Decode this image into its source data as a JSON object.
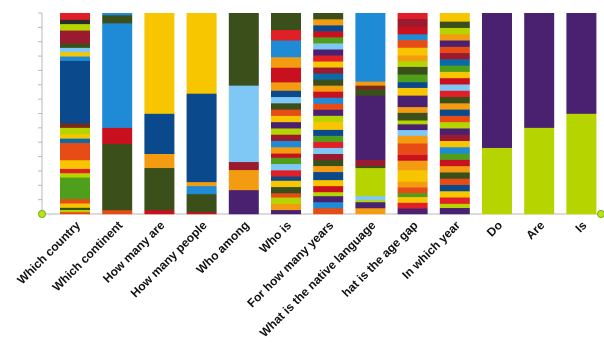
{
  "chart_data": {
    "type": "bar",
    "stacked": true,
    "normalized": true,
    "ylim": [
      0,
      1
    ],
    "grid": false,
    "legend": "none",
    "categories": [
      "Which country",
      "Which continent",
      "How many are",
      "How many people",
      "Who among",
      "Who is",
      "For how many years",
      "What is the native language",
      "hat is the age gap",
      "In which year",
      "Do",
      "Are",
      "Is"
    ],
    "stacks": [
      [
        [
          "#e74c16",
          0.01
        ],
        [
          "#b5d400",
          0.01
        ],
        [
          "#3a4f1a",
          0.01
        ],
        [
          "#f7c600",
          0.02
        ],
        [
          "#e74c16",
          0.02
        ],
        [
          "#4f9f1c",
          0.1
        ],
        [
          "#b5d400",
          0.02
        ],
        [
          "#e01f26",
          0.02
        ],
        [
          "#f7c600",
          0.04
        ],
        [
          "#e74c16",
          0.08
        ],
        [
          "#0b6aa8",
          0.02
        ],
        [
          "#f7c600",
          0.02
        ],
        [
          "#b5d400",
          0.03
        ],
        [
          "#7a2a1a",
          0.02
        ],
        [
          "#0a4a8c",
          0.29
        ],
        [
          "#1f8ad6",
          0.02
        ],
        [
          "#f7c600",
          0.02
        ],
        [
          "#7fc8f5",
          0.02
        ],
        [
          "#3a4f1a",
          0.02
        ],
        [
          "#9a1a30",
          0.06
        ],
        [
          "#b5d400",
          0.03
        ],
        [
          "#2b2b2b",
          0.02
        ],
        [
          "#e01f26",
          0.03
        ]
      ],
      [
        [
          "#e74c16",
          0.02
        ],
        [
          "#3a4f1a",
          0.33
        ],
        [
          "#c8101e",
          0.08
        ],
        [
          "#1f8ad6",
          0.52
        ],
        [
          "#3a4f1a",
          0.04
        ],
        [
          "#1f8ad6",
          0.01
        ]
      ],
      [
        [
          "#c8101e",
          0.02
        ],
        [
          "#3a4f1a",
          0.21
        ],
        [
          "#f39c12",
          0.07
        ],
        [
          "#0a4a8c",
          0.2
        ],
        [
          "#f7c600",
          0.5
        ]
      ],
      [
        [
          "#c8101e",
          0.01
        ],
        [
          "#3a4f1a",
          0.09
        ],
        [
          "#1f8ad6",
          0.04
        ],
        [
          "#f39c12",
          0.02
        ],
        [
          "#0a4a8c",
          0.44
        ],
        [
          "#f7c600",
          0.4
        ]
      ],
      [
        [
          "#4a2070",
          0.12
        ],
        [
          "#f39c12",
          0.1
        ],
        [
          "#9a1a30",
          0.04
        ],
        [
          "#7fc8f5",
          0.38
        ],
        [
          "#3a4f1a",
          0.36
        ]
      ],
      [
        [
          "#4a2070",
          0.02
        ],
        [
          "#f39c12",
          0.03
        ],
        [
          "#b5d400",
          0.03
        ],
        [
          "#e74c16",
          0.02
        ],
        [
          "#3a4f1a",
          0.03
        ],
        [
          "#f7c600",
          0.03
        ],
        [
          "#0a4a8c",
          0.02
        ],
        [
          "#e01f26",
          0.03
        ],
        [
          "#7fc8f5",
          0.03
        ],
        [
          "#4f9f1c",
          0.03
        ],
        [
          "#c8101e",
          0.02
        ],
        [
          "#f39c12",
          0.03
        ],
        [
          "#1f8ad6",
          0.03
        ],
        [
          "#9a1a30",
          0.03
        ],
        [
          "#b5d400",
          0.03
        ],
        [
          "#4a2070",
          0.03
        ],
        [
          "#f7c600",
          0.03
        ],
        [
          "#e74c16",
          0.03
        ],
        [
          "#3a4f1a",
          0.03
        ],
        [
          "#7fc8f5",
          0.03
        ],
        [
          "#0a4a8c",
          0.03
        ],
        [
          "#f39c12",
          0.04
        ],
        [
          "#c8101e",
          0.07
        ],
        [
          "#f39c12",
          0.05
        ],
        [
          "#1f8ad6",
          0.08
        ],
        [
          "#e01f26",
          0.05
        ],
        [
          "#3a4f1a",
          0.04
        ],
        [
          "#3a4f1a",
          0.04
        ]
      ],
      [
        [
          "#e74c16",
          0.03
        ],
        [
          "#1f8ad6",
          0.03
        ],
        [
          "#4a2070",
          0.03
        ],
        [
          "#b5d400",
          0.02
        ],
        [
          "#c8101e",
          0.03
        ],
        [
          "#f7c600",
          0.03
        ],
        [
          "#0a4a8c",
          0.04
        ],
        [
          "#f39c12",
          0.03
        ],
        [
          "#3a4f1a",
          0.03
        ],
        [
          "#9a1a30",
          0.03
        ],
        [
          "#7fc8f5",
          0.03
        ],
        [
          "#e01f26",
          0.03
        ],
        [
          "#4f9f1c",
          0.03
        ],
        [
          "#0a4a8c",
          0.03
        ],
        [
          "#f7c600",
          0.04
        ],
        [
          "#b5d400",
          0.03
        ],
        [
          "#4a2070",
          0.03
        ],
        [
          "#e74c16",
          0.03
        ],
        [
          "#1f8ad6",
          0.03
        ],
        [
          "#c8101e",
          0.03
        ],
        [
          "#f39c12",
          0.03
        ],
        [
          "#3a4f1a",
          0.03
        ],
        [
          "#0b6aa8",
          0.03
        ],
        [
          "#9a1a30",
          0.03
        ],
        [
          "#f7c600",
          0.03
        ],
        [
          "#e01f26",
          0.03
        ],
        [
          "#4a2070",
          0.03
        ],
        [
          "#7fc8f5",
          0.03
        ],
        [
          "#4f9f1c",
          0.03
        ],
        [
          "#c8101e",
          0.03
        ],
        [
          "#0a4a8c",
          0.03
        ],
        [
          "#f39c12",
          0.03
        ],
        [
          "#3a4f1a",
          0.03
        ]
      ],
      [
        [
          "#f39c12",
          0.03
        ],
        [
          "#4a2070",
          0.03
        ],
        [
          "#b5d400",
          0.01
        ],
        [
          "#7fc8f5",
          0.02
        ],
        [
          "#b5d400",
          0.14
        ],
        [
          "#3a4f1a",
          0.01
        ],
        [
          "#9a1a30",
          0.03
        ],
        [
          "#4a2070",
          0.32
        ],
        [
          "#3a4f1a",
          0.03
        ],
        [
          "#7a2a1a",
          0.02
        ],
        [
          "#f39c12",
          0.02
        ],
        [
          "#1f8ad6",
          0.34
        ]
      ],
      [
        [
          "#4a2070",
          0.03
        ],
        [
          "#e01f26",
          0.03
        ],
        [
          "#f7c600",
          0.03
        ],
        [
          "#4f9f1c",
          0.02
        ],
        [
          "#e74c16",
          0.03
        ],
        [
          "#f39c12",
          0.03
        ],
        [
          "#f7c600",
          0.06
        ],
        [
          "#f39c12",
          0.05
        ],
        [
          "#c8101e",
          0.03
        ],
        [
          "#e74c16",
          0.06
        ],
        [
          "#f39c12",
          0.04
        ],
        [
          "#7fc8f5",
          0.03
        ],
        [
          "#4a2070",
          0.03
        ],
        [
          "#b5d400",
          0.02
        ],
        [
          "#3a4f1a",
          0.04
        ],
        [
          "#f39c12",
          0.03
        ],
        [
          "#4a2070",
          0.06
        ],
        [
          "#f7c600",
          0.04
        ],
        [
          "#0a4a8c",
          0.03
        ],
        [
          "#4f9f1c",
          0.04
        ],
        [
          "#3a4f1a",
          0.04
        ],
        [
          "#b5d400",
          0.03
        ],
        [
          "#f39c12",
          0.03
        ],
        [
          "#f7c600",
          0.04
        ],
        [
          "#e74c16",
          0.04
        ],
        [
          "#1f8ad6",
          0.03
        ],
        [
          "#c8101e",
          0.04
        ],
        [
          "#9a1a30",
          0.04
        ],
        [
          "#e01f26",
          0.03
        ]
      ],
      [
        [
          "#4a2070",
          0.03
        ],
        [
          "#b5d400",
          0.02
        ],
        [
          "#e01f26",
          0.03
        ],
        [
          "#f7c600",
          0.03
        ],
        [
          "#0a4a8c",
          0.03
        ],
        [
          "#e74c16",
          0.03
        ],
        [
          "#3a4f1a",
          0.03
        ],
        [
          "#f39c12",
          0.03
        ],
        [
          "#c8101e",
          0.03
        ],
        [
          "#4f9f1c",
          0.03
        ],
        [
          "#1f8ad6",
          0.03
        ],
        [
          "#f7c600",
          0.03
        ],
        [
          "#9a1a30",
          0.03
        ],
        [
          "#4a2070",
          0.03
        ],
        [
          "#b5d400",
          0.03
        ],
        [
          "#e74c16",
          0.03
        ],
        [
          "#0a4a8c",
          0.03
        ],
        [
          "#f39c12",
          0.03
        ],
        [
          "#3a4f1a",
          0.03
        ],
        [
          "#e01f26",
          0.03
        ],
        [
          "#7fc8f5",
          0.03
        ],
        [
          "#c8101e",
          0.03
        ],
        [
          "#f7c600",
          0.03
        ],
        [
          "#4f9f1c",
          0.03
        ],
        [
          "#0b6aa8",
          0.03
        ],
        [
          "#9a1a30",
          0.03
        ],
        [
          "#e74c16",
          0.03
        ],
        [
          "#4a2070",
          0.03
        ],
        [
          "#f39c12",
          0.03
        ],
        [
          "#b5d400",
          0.03
        ],
        [
          "#3a4f1a",
          0.03
        ],
        [
          "#f7c600",
          0.04
        ]
      ],
      [
        [
          "#b5d400",
          0.33
        ],
        [
          "#4a2070",
          0.67
        ]
      ],
      [
        [
          "#b5d400",
          0.43
        ],
        [
          "#4a2070",
          0.57
        ]
      ],
      [
        [
          "#b5d400",
          0.5
        ],
        [
          "#4a2070",
          0.5
        ]
      ]
    ]
  }
}
